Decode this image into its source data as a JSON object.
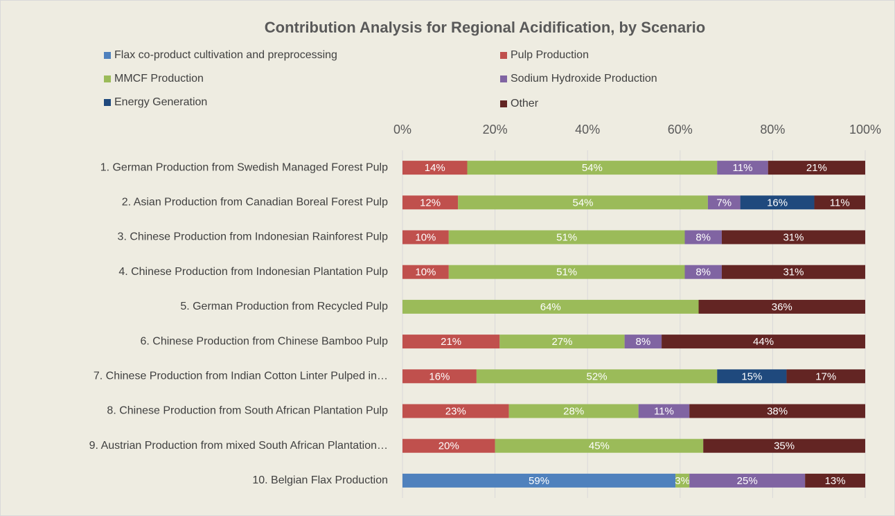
{
  "chart_data": {
    "type": "stacked-bar-horizontal",
    "title": "Contribution Analysis for Regional Acidification, by Scenario",
    "categories": [
      "1. German Production from Swedish Managed Forest Pulp",
      "2. Asian Production from Canadian Boreal Forest Pulp",
      "3. Chinese Production from Indonesian Rainforest Pulp",
      "4. Chinese Production from Indonesian Plantation Pulp",
      "5. German Production from Recycled Pulp",
      "6. Chinese Production from Chinese Bamboo Pulp",
      "7. Chinese Production from Indian Cotton Linter Pulped in…",
      "8. Chinese Production from South African Plantation Pulp",
      "9. Austrian Production from mixed South African Plantation…",
      "10. Belgian Flax Production"
    ],
    "series": [
      {
        "name": "Flax co-product cultivation and preprocessing",
        "color": "#4f81bd",
        "values": [
          null,
          null,
          null,
          null,
          null,
          null,
          null,
          null,
          null,
          59
        ],
        "value_labels": [
          null,
          null,
          null,
          null,
          null,
          null,
          null,
          null,
          null,
          "59%"
        ]
      },
      {
        "name": "Pulp Production",
        "color": "#c0504d",
        "values": [
          14,
          12,
          10,
          10,
          null,
          21,
          16,
          23,
          20,
          null
        ],
        "value_labels": [
          "14%",
          "12%",
          "10%",
          "10%",
          null,
          "21%",
          "16%",
          "23%",
          "20%",
          null
        ]
      },
      {
        "name": "MMCF Production",
        "color": "#9bbb59",
        "values": [
          54,
          54,
          51,
          51,
          64,
          27,
          52,
          28,
          45,
          3
        ],
        "value_labels": [
          "54%",
          "54%",
          "51%",
          "51%",
          "64%",
          "27%",
          "52%",
          "28%",
          "45%",
          "3%"
        ]
      },
      {
        "name": "Sodium Hydroxide Production",
        "color": "#8064a2",
        "values": [
          11,
          7,
          8,
          8,
          null,
          8,
          null,
          11,
          null,
          25
        ],
        "value_labels": [
          "11%",
          "7%",
          "8%",
          "8%",
          null,
          "8%",
          null,
          "11%",
          null,
          "25%"
        ]
      },
      {
        "name": "Energy Generation",
        "color": "#1f497d",
        "values": [
          null,
          16,
          null,
          null,
          null,
          null,
          15,
          null,
          null,
          null
        ],
        "value_labels": [
          null,
          "16%",
          null,
          null,
          null,
          null,
          "15%",
          null,
          null,
          null
        ]
      },
      {
        "name": "Other",
        "color": "#632523",
        "values": [
          21,
          11,
          31,
          31,
          36,
          44,
          17,
          38,
          35,
          13
        ],
        "value_labels": [
          "21%",
          "11%",
          "31%",
          "31%",
          "36%",
          "44%",
          "17%",
          "38%",
          "35%",
          "13%"
        ]
      }
    ],
    "xlim": [
      0,
      100
    ],
    "xticks": [
      {
        "value": 0,
        "label": "0%"
      },
      {
        "value": 20,
        "label": "20%"
      },
      {
        "value": 40,
        "label": "40%"
      },
      {
        "value": 60,
        "label": "60%"
      },
      {
        "value": 80,
        "label": "80%"
      },
      {
        "value": 100,
        "label": "100%"
      }
    ],
    "grid": true,
    "legend": "top"
  }
}
